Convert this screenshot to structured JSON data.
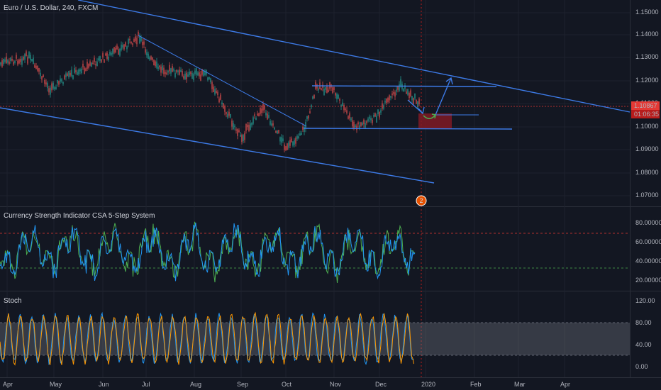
{
  "symbol_title": "Euro / U.S. Dollar, 240, FXCM",
  "price_axis": {
    "ticks": [
      "1.15000",
      "1.14000",
      "1.13000",
      "1.12000",
      "1.11000",
      "1.10000",
      "1.09000",
      "1.08000",
      "1.07000"
    ],
    "last_price": "1.10867",
    "countdown": "01:06:35"
  },
  "indicator1": {
    "title": "Currency Strength Indicator CSA 5-Step System",
    "ticks": [
      "80.00000",
      "60.00000",
      "40.00000",
      "20.00000"
    ]
  },
  "indicator2": {
    "title": "Stoch",
    "ticks": [
      "120.00",
      "80.00",
      "40.00",
      "0.00"
    ]
  },
  "time_axis": {
    "labels": [
      "Apr",
      "May",
      "Jun",
      "Jul",
      "Aug",
      "Sep",
      "Oct",
      "Nov",
      "Dec",
      "2020",
      "Feb",
      "Mar",
      "Apr"
    ]
  },
  "event_badge": "2",
  "colors": {
    "background": "#131722",
    "up_candle": "#26a69a",
    "down_candle": "#ef5350",
    "trendline": "#2962ff",
    "csa_blue": "#2196f3",
    "csa_green": "#4caf50",
    "stoch_line": "#ff9800",
    "stoch_band": "#787b86",
    "price_label": "#e53935"
  }
}
